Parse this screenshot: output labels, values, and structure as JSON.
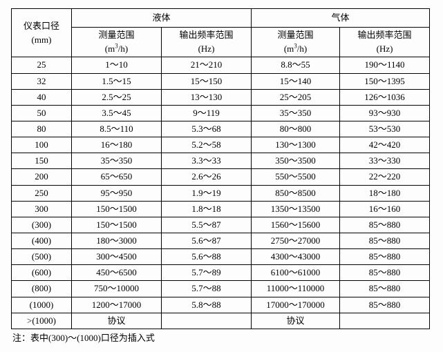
{
  "header": {
    "size_label": "仪表口径",
    "size_unit": "(mm)",
    "liquid_label": "液体",
    "gas_label": "气体",
    "range_label": "测量范围",
    "range_unit_prefix": "(m",
    "range_unit_sup": "3",
    "range_unit_suffix": "/h)",
    "freq_label": "输出频率范围",
    "freq_unit": "(Hz)"
  },
  "rows": [
    {
      "size": "25",
      "lr": "1～10",
      "lf": "21～210",
      "gr": "8.8～55",
      "gf": "190～1140"
    },
    {
      "size": "32",
      "lr": "1.5～15",
      "lf": "15～150",
      "gr": "15～140",
      "gf": "150～1395"
    },
    {
      "size": "40",
      "lr": "2.5～25",
      "lf": "13～130",
      "gr": "25～205",
      "gf": "126～1036"
    },
    {
      "size": "50",
      "lr": "3.5～45",
      "lf": "9～119",
      "gr": "35～350",
      "gf": "93～930"
    },
    {
      "size": "80",
      "lr": "8.5～110",
      "lf": "5.3～68",
      "gr": "80～800",
      "gf": "53～530"
    },
    {
      "size": "100",
      "lr": "16～180",
      "lf": "5.2～58",
      "gr": "130～1300",
      "gf": "42～420"
    },
    {
      "size": "150",
      "lr": "35～350",
      "lf": "3.3～33",
      "gr": "350～3500",
      "gf": "33～330"
    },
    {
      "size": "200",
      "lr": "65～650",
      "lf": "2.6～26",
      "gr": "550～5500",
      "gf": "22～220"
    },
    {
      "size": "250",
      "lr": "95～950",
      "lf": "1.9～19",
      "gr": "850～8500",
      "gf": "18～180"
    },
    {
      "size": "300",
      "lr": "150～1500",
      "lf": "1.8～18",
      "gr": "1350～13500",
      "gf": "16～160"
    },
    {
      "size": "(300)",
      "lr": "150～1500",
      "lf": "5.5～87",
      "gr": "1560～15600",
      "gf": "85～880"
    },
    {
      "size": "(400)",
      "lr": "180～3000",
      "lf": "5.6～87",
      "gr": "2750～27000",
      "gf": "85～880"
    },
    {
      "size": "(500)",
      "lr": "300～4500",
      "lf": "5.6～88",
      "gr": "4300～43000",
      "gf": "85～880"
    },
    {
      "size": "(600)",
      "lr": "450～6500",
      "lf": "5.7～89",
      "gr": "6100～61000",
      "gf": "85～880"
    },
    {
      "size": "(800)",
      "lr": "750～10000",
      "lf": "5.7～88",
      "gr": "11000～110000",
      "gf": "85～880"
    },
    {
      "size": "(1000)",
      "lr": "1200～17000",
      "lf": "5.8～88",
      "gr": "17000～170000",
      "gf": "85～880"
    }
  ],
  "last_row": {
    "size": ">(1000)",
    "liquid": "协议",
    "l2": "",
    "gas": "协议",
    "g2": ""
  },
  "note": "注：表中(300)～(1000)口径为插入式"
}
